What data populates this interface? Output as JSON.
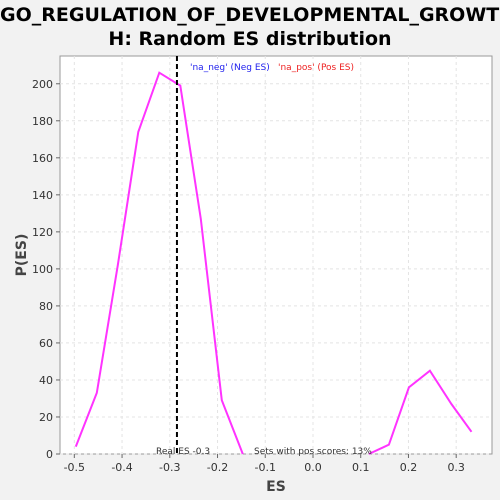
{
  "chart_data": {
    "type": "line",
    "title_line1": "GO_REGULATION_OF_DEVELOPMENTAL_GROWTH",
    "title_line2": "H: Random ES distribution",
    "xlabel": "ES",
    "ylabel": "P(ES)",
    "xlim": [
      -0.53,
      0.375
    ],
    "ylim": [
      0,
      215
    ],
    "x_ticks": [
      -0.5,
      -0.4,
      -0.3,
      -0.2,
      -0.1,
      0.0,
      0.1,
      0.2,
      0.3
    ],
    "x_tick_labels": [
      "-0.5",
      "-0.4",
      "-0.3",
      "-0.2",
      "-0.1",
      "0.0",
      "0.1",
      "0.2",
      "0.3"
    ],
    "y_ticks": [
      0,
      20,
      40,
      60,
      80,
      100,
      120,
      140,
      160,
      180,
      200
    ],
    "y_tick_labels": [
      "0",
      "20",
      "40",
      "60",
      "80",
      "100",
      "120",
      "140",
      "160",
      "180",
      "200"
    ],
    "grid": true,
    "series": [
      {
        "name": "'na_neg' (Neg ES)",
        "color": "#ff33ff",
        "x": [
          -0.497,
          -0.453,
          -0.409,
          -0.366,
          -0.322,
          -0.278,
          -0.235,
          -0.191,
          -0.147
        ],
        "y": [
          4,
          33,
          102,
          174,
          206,
          199,
          127,
          29,
          0
        ]
      },
      {
        "name": "'na_pos' (Pos ES)",
        "color": "#ff33ff",
        "x": [
          0.117,
          0.159,
          0.201,
          0.245,
          0.29,
          0.332
        ],
        "y": [
          0,
          5,
          36,
          45,
          27,
          12
        ]
      }
    ],
    "legend": [
      {
        "text": "'na_neg' (Neg ES)",
        "color": "#2222ee"
      },
      {
        "text": "'na_pos' (Pos ES)",
        "color": "#ee2222"
      }
    ],
    "real_es": -0.285,
    "annotations": {
      "real_es_label": "Real ES -0.3",
      "pos_scores_label": "Sets with pos scores: 13%"
    }
  }
}
